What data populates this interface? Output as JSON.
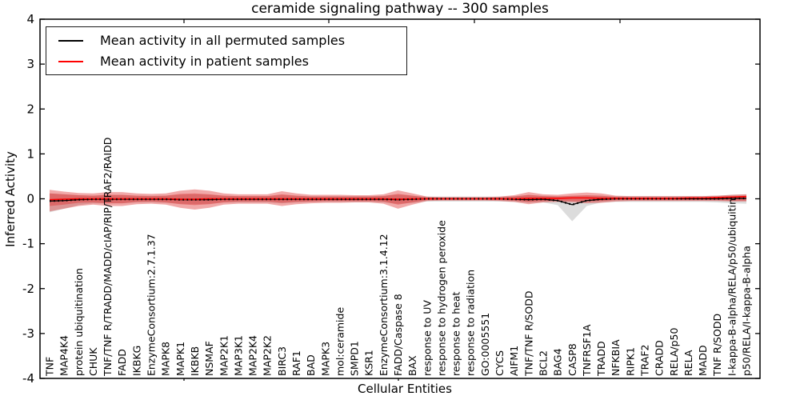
{
  "chart_data": {
    "type": "line",
    "title": "ceramide signaling pathway -- 300 samples",
    "xlabel": "Cellular Entities",
    "ylabel": "Inferred Activity",
    "ylim": [
      -4,
      4
    ],
    "yticks": [
      4,
      3,
      2,
      1,
      0,
      -1,
      -2,
      -3,
      -4
    ],
    "grid": false,
    "legend_position": "upper left",
    "legend": [
      {
        "label": "Mean activity in all permuted samples",
        "color": "#000000"
      },
      {
        "label": "Mean activity in patient samples",
        "color": "#ff0000"
      }
    ],
    "colors": {
      "permuted_line": "#000000",
      "patient_line": "#ff0000",
      "patient_band": "rgba(220,40,40,0.40)",
      "permuted_band": "rgba(130,130,130,0.28)",
      "axis": "#000000"
    },
    "categories": [
      "TNF",
      "MAP4K4",
      "protein ubiquitination",
      "CHUK",
      "TNF/TNF R/TRADD/MADD/cIAP/RIP/TRAF2/RAIDD",
      "FADD",
      "IKBKG",
      "EnzymeConsortium:2.7.1.37",
      "MAPK8",
      "MAPK1",
      "IKBKB",
      "NSMAF",
      "MAP2K1",
      "MAP3K1",
      "MAP2K4",
      "MAP2K2",
      "BIRC3",
      "RAF1",
      "BAD",
      "MAPK3",
      "mol:ceramide",
      "SMPD1",
      "KSR1",
      "EnzymeConsortium:3.1.4.12",
      "FADD/Caspase 8",
      "BAX",
      "response to UV",
      "response to hydrogen peroxide",
      "response to heat",
      "response to radiation",
      "GO:0005551",
      "CYCS",
      "AIFM1",
      "TNF/TNF R/SODD",
      "BCL2",
      "BAG4",
      "CASP8",
      "TNFRSF1A",
      "TRADD",
      "NFKBIA",
      "RIPK1",
      "TRAF2",
      "CRADD",
      "RELA/p50",
      "RELA",
      "MADD",
      "TNF R/SODD",
      "I-kappa-B-alpha/RELA/p50/ubiquitin",
      "p50/RELA/I-kappa-B-alpha"
    ],
    "series": [
      {
        "name": "permuted_mean",
        "values": [
          -0.05,
          -0.04,
          -0.02,
          -0.01,
          -0.01,
          -0.01,
          -0.01,
          -0.01,
          -0.01,
          -0.02,
          -0.02,
          -0.02,
          -0.01,
          -0.01,
          -0.01,
          -0.01,
          -0.01,
          -0.01,
          -0.01,
          -0.01,
          -0.01,
          -0.01,
          -0.01,
          -0.01,
          -0.02,
          -0.01,
          0,
          0,
          0,
          0,
          0,
          0,
          -0.01,
          -0.02,
          -0.01,
          -0.04,
          -0.13,
          -0.04,
          -0.01,
          0,
          0,
          0,
          0,
          0,
          0,
          0,
          0,
          0.01,
          0.01
        ]
      },
      {
        "name": "patient_mean",
        "values": [
          -0.02,
          -0.01,
          0,
          0,
          0,
          0,
          0,
          0,
          0,
          -0.01,
          -0.01,
          0,
          0,
          0,
          0,
          0,
          0,
          0,
          0,
          0,
          0,
          0,
          0,
          0,
          -0.01,
          0,
          0,
          0,
          0,
          0,
          0,
          0,
          0,
          0.01,
          0.01,
          0.01,
          0.02,
          0.02,
          0.01,
          0.01,
          0.01,
          0.01,
          0.01,
          0.01,
          0.02,
          0.02,
          0.03,
          0.04,
          0.05
        ]
      }
    ],
    "bands": {
      "patient_outer_hi": [
        0.2,
        0.16,
        0.13,
        0.12,
        0.15,
        0.15,
        0.12,
        0.11,
        0.12,
        0.18,
        0.21,
        0.18,
        0.12,
        0.1,
        0.1,
        0.1,
        0.17,
        0.12,
        0.09,
        0.09,
        0.09,
        0.08,
        0.08,
        0.1,
        0.19,
        0.12,
        0.05,
        0.04,
        0.04,
        0.04,
        0.04,
        0.05,
        0.08,
        0.15,
        0.1,
        0.09,
        0.12,
        0.14,
        0.12,
        0.07,
        0.06,
        0.06,
        0.06,
        0.06,
        0.06,
        0.06,
        0.07,
        0.09,
        0.1
      ],
      "patient_outer_lo": [
        -0.28,
        -0.22,
        -0.16,
        -0.13,
        -0.16,
        -0.16,
        -0.12,
        -0.11,
        -0.13,
        -0.2,
        -0.24,
        -0.2,
        -0.13,
        -0.11,
        -0.11,
        -0.11,
        -0.16,
        -0.12,
        -0.1,
        -0.09,
        -0.09,
        -0.08,
        -0.08,
        -0.11,
        -0.22,
        -0.13,
        -0.05,
        -0.04,
        -0.04,
        -0.04,
        -0.04,
        -0.05,
        -0.07,
        -0.12,
        -0.08,
        -0.07,
        -0.08,
        -0.1,
        -0.09,
        -0.06,
        -0.05,
        -0.05,
        -0.05,
        -0.05,
        -0.05,
        -0.05,
        -0.05,
        -0.06,
        -0.06
      ],
      "patient_inner_hi": [
        0.12,
        0.1,
        0.08,
        0.07,
        0.09,
        0.09,
        0.07,
        0.06,
        0.07,
        0.11,
        0.12,
        0.1,
        0.07,
        0.06,
        0.06,
        0.06,
        0.1,
        0.07,
        0.05,
        0.05,
        0.05,
        0.05,
        0.05,
        0.06,
        0.11,
        0.07,
        0.03,
        0.02,
        0.02,
        0.02,
        0.02,
        0.03,
        0.05,
        0.09,
        0.06,
        0.05,
        0.07,
        0.08,
        0.07,
        0.04,
        0.03,
        0.03,
        0.03,
        0.03,
        0.03,
        0.03,
        0.04,
        0.05,
        0.06
      ],
      "patient_inner_lo": [
        -0.16,
        -0.13,
        -0.09,
        -0.08,
        -0.1,
        -0.1,
        -0.07,
        -0.06,
        -0.08,
        -0.12,
        -0.14,
        -0.12,
        -0.08,
        -0.06,
        -0.06,
        -0.06,
        -0.09,
        -0.07,
        -0.06,
        -0.05,
        -0.05,
        -0.05,
        -0.05,
        -0.06,
        -0.13,
        -0.08,
        -0.03,
        -0.02,
        -0.02,
        -0.02,
        -0.02,
        -0.03,
        -0.04,
        -0.07,
        -0.05,
        -0.04,
        -0.05,
        -0.06,
        -0.05,
        -0.03,
        -0.03,
        -0.03,
        -0.03,
        -0.03,
        -0.03,
        -0.03,
        -0.03,
        -0.04,
        -0.04
      ],
      "permuted_hi": [
        0.12,
        0.1,
        0.08,
        0.07,
        0.08,
        0.08,
        0.07,
        0.07,
        0.07,
        0.09,
        0.1,
        0.09,
        0.07,
        0.06,
        0.06,
        0.06,
        0.08,
        0.07,
        0.06,
        0.06,
        0.06,
        0.06,
        0.06,
        0.07,
        0.09,
        0.07,
        0.05,
        0.05,
        0.05,
        0.05,
        0.05,
        0.05,
        0.06,
        0.08,
        0.07,
        0.06,
        0.06,
        0.07,
        0.07,
        0.06,
        0.06,
        0.06,
        0.06,
        0.06,
        0.06,
        0.06,
        0.07,
        0.09,
        0.1
      ],
      "permuted_lo": [
        -0.3,
        -0.22,
        -0.14,
        -0.1,
        -0.1,
        -0.1,
        -0.08,
        -0.08,
        -0.09,
        -0.11,
        -0.12,
        -0.11,
        -0.08,
        -0.08,
        -0.08,
        -0.08,
        -0.1,
        -0.08,
        -0.07,
        -0.07,
        -0.07,
        -0.07,
        -0.07,
        -0.08,
        -0.11,
        -0.09,
        -0.06,
        -0.06,
        -0.06,
        -0.06,
        -0.06,
        -0.06,
        -0.07,
        -0.09,
        -0.08,
        -0.14,
        -0.5,
        -0.16,
        -0.08,
        -0.07,
        -0.07,
        -0.07,
        -0.07,
        -0.07,
        -0.07,
        -0.07,
        -0.08,
        -0.1,
        -0.11
      ]
    }
  }
}
